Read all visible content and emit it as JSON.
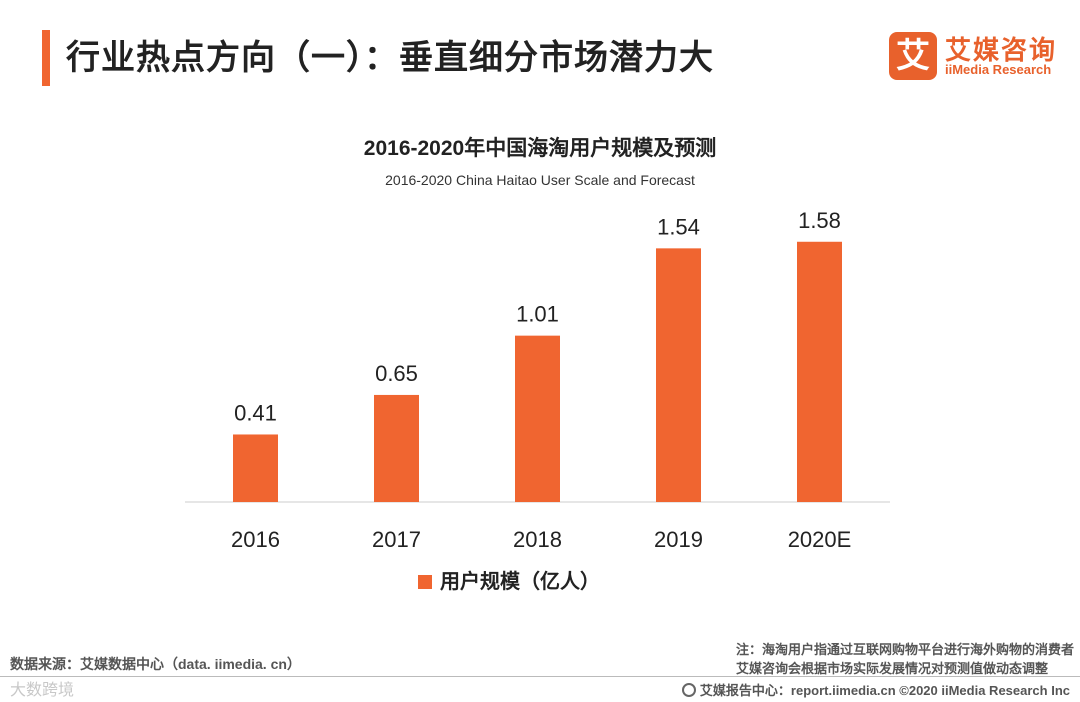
{
  "header": {
    "title": "行业热点方向（一）：垂直细分市场潜力大",
    "accent_color": "#f06530"
  },
  "logo": {
    "mark": "艾",
    "name_cn": "艾媒咨询",
    "name_en": "iiMedia Research",
    "color": "#e8612c"
  },
  "chart_data": {
    "type": "bar",
    "title": "2016-2020年中国海淘用户规模及预测",
    "subtitle": "2016-2020 China Haitao User Scale and Forecast",
    "categories": [
      "2016",
      "2017",
      "2018",
      "2019",
      "2020E"
    ],
    "series": [
      {
        "name": "用户规模（亿人）",
        "values": [
          0.41,
          0.65,
          1.01,
          1.54,
          1.58
        ],
        "color": "#f06530"
      }
    ],
    "value_labels": [
      "0.41",
      "0.65",
      "1.01",
      "1.54",
      "1.58"
    ],
    "ylim": [
      0,
      1.7
    ],
    "legend": "bottom-center",
    "grid": false
  },
  "source": "数据来源：艾媒数据中心（data. iimedia. cn）",
  "note": {
    "line1": "注：海淘用户指通过互联网购物平台进行海外购物的消费者",
    "line2": "艾媒咨询会根据市场实际发展情况对预测值做动态调整"
  },
  "footer": {
    "text": "艾媒报告中心：report.iimedia.cn ©2020 iiMedia Research Inc"
  },
  "watermark": "大数跨境"
}
